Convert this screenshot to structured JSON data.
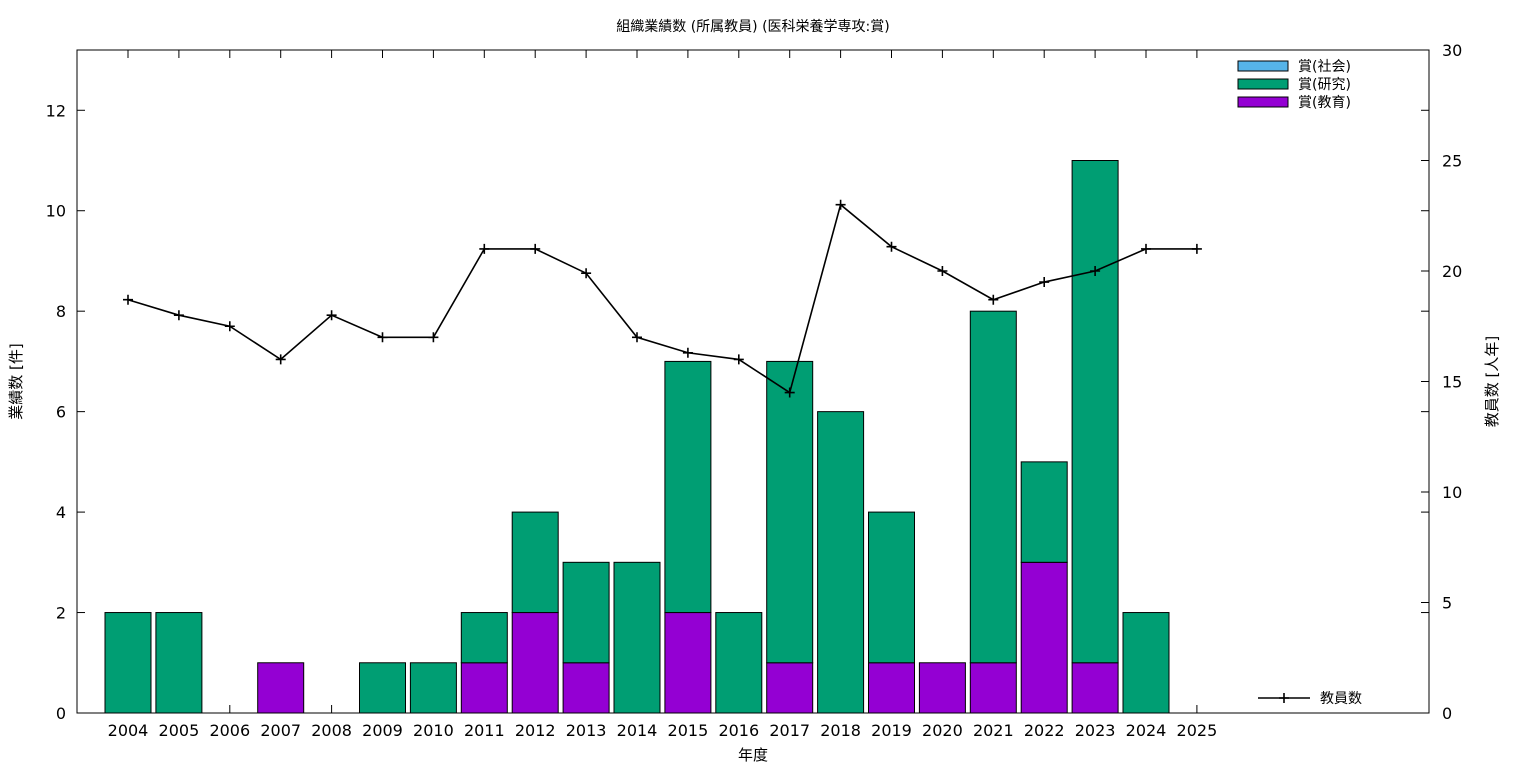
{
  "chart_data": {
    "type": "bar",
    "title": "組織業績数 (所属教員) (医科栄養学専攻:賞)",
    "xlabel": "年度",
    "ylabel": "業績数 [件]",
    "y2label": "教員数 [人年]",
    "ylim": [
      0,
      13.2
    ],
    "y2lim": [
      0,
      30
    ],
    "yticks": [
      "0",
      "2",
      "4",
      "6",
      "8",
      "10",
      "12"
    ],
    "y2ticks": [
      "0",
      "5",
      "10",
      "15",
      "20",
      "25",
      "30"
    ],
    "grid": false,
    "legend_position": "top-right",
    "categories": [
      "2004",
      "2005",
      "2006",
      "2007",
      "2008",
      "2009",
      "2010",
      "2011",
      "2012",
      "2013",
      "2014",
      "2015",
      "2016",
      "2017",
      "2018",
      "2019",
      "2020",
      "2021",
      "2022",
      "2023",
      "2024",
      "2025"
    ],
    "series": [
      {
        "name": "賞(教育)",
        "color": "#9400d3",
        "values": [
          0,
          0,
          0,
          1,
          0,
          0,
          0,
          1,
          2,
          1,
          0,
          2,
          0,
          1,
          0,
          1,
          1,
          1,
          3,
          1,
          0,
          0
        ]
      },
      {
        "name": "賞(研究)",
        "color": "#009e73",
        "values": [
          2,
          2,
          0,
          0,
          0,
          1,
          1,
          1,
          2,
          2,
          3,
          5,
          2,
          6,
          6,
          3,
          0,
          7,
          2,
          10,
          2,
          0
        ]
      },
      {
        "name": "賞(社会)",
        "color": "#56b4e9",
        "values": [
          0,
          0,
          0,
          0,
          0,
          0,
          0,
          0,
          0,
          0,
          0,
          0,
          0,
          0,
          0,
          0,
          0,
          0,
          0,
          0,
          0,
          0
        ]
      }
    ],
    "legend_order": [
      "賞(社会)",
      "賞(研究)",
      "賞(教育)"
    ],
    "line_series": {
      "name": "教員数",
      "axis": "y2",
      "color": "#000000",
      "values": [
        18.7,
        18.0,
        17.5,
        16.0,
        18.0,
        17.0,
        17.0,
        21.0,
        21.0,
        19.9,
        17.0,
        16.3,
        16.0,
        14.5,
        23.0,
        21.1,
        20.0,
        18.7,
        19.5,
        20.0,
        21.0,
        21.0
      ]
    }
  }
}
